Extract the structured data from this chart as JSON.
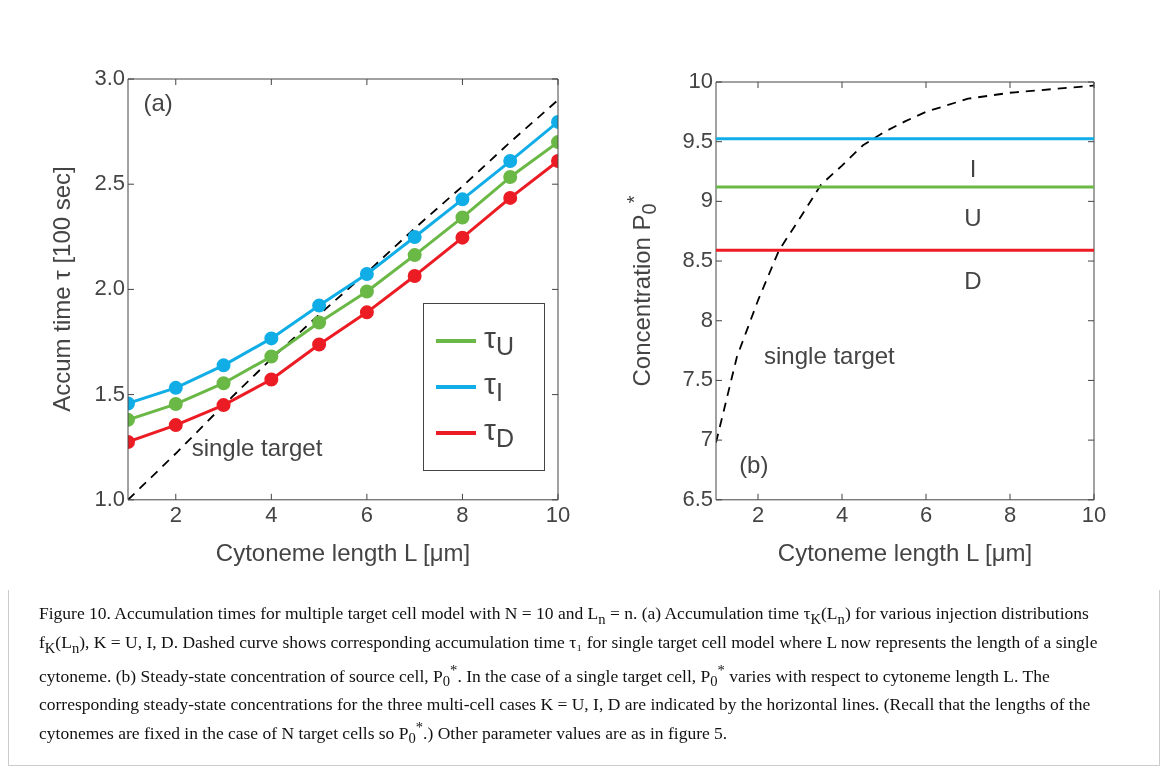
{
  "chart_data": [
    {
      "type": "line",
      "xlabel": "Cytoneme length L [μm]",
      "ylabel": "Accum time τ [100 sec]",
      "x": [
        1,
        2,
        3,
        4,
        5,
        6,
        7,
        8,
        9,
        10
      ],
      "series": [
        {
          "name": "τ$_{U}$",
          "color": "#6ab845",
          "marker": "circle",
          "values": [
            1.38,
            1.455,
            1.554,
            1.681,
            1.843,
            1.99,
            2.163,
            2.342,
            2.534,
            2.7
          ]
        },
        {
          "name": "τ$_{I}$",
          "color": "#10ade6",
          "marker": "circle",
          "values": [
            1.458,
            1.532,
            1.639,
            1.767,
            1.923,
            2.073,
            2.249,
            2.428,
            2.61,
            2.796
          ]
        },
        {
          "name": "τ$_{D}$",
          "color": "#ec1c24",
          "marker": "circle",
          "values": [
            1.275,
            1.355,
            1.45,
            1.572,
            1.738,
            1.891,
            2.064,
            2.246,
            2.435,
            2.61
          ]
        },
        {
          "color": "#000000",
          "marker": "none",
          "line_style": "dashed",
          "values": [
            1.0,
            1.22,
            1.45,
            1.67,
            1.88,
            2.08,
            2.29,
            2.49,
            2.7,
            2.9
          ]
        }
      ],
      "xlim": [
        1,
        10
      ],
      "xticks": [
        2,
        4,
        6,
        8,
        10
      ],
      "ylim": [
        1,
        3
      ],
      "yticks": [
        {
          "value": 1,
          "label": "1.0"
        },
        {
          "value": 1.5,
          "label": "1.5"
        },
        {
          "value": 2,
          "label": "2.0"
        },
        {
          "value": 2.5,
          "label": "2.5"
        },
        {
          "value": 3,
          "label": "3.0"
        }
      ],
      "grid": false,
      "legend": "bottom right",
      "annotations": [
        "(a)",
        "single target"
      ]
    },
    {
      "type": "line",
      "xlabel": "Cytoneme length L [μm]",
      "ylabel": "Concentration P$_{0}$$^{*}$",
      "x": [
        1,
        1.5,
        2,
        2.5,
        3,
        3.5,
        4,
        4.5,
        5,
        5.5,
        6,
        7,
        8,
        9,
        10
      ],
      "series": [
        {
          "color": "#000000",
          "marker": "none",
          "line_style": "dashed",
          "values": [
            6.98,
            7.7,
            8.17,
            8.59,
            8.86,
            9.14,
            9.3,
            9.47,
            9.58,
            9.67,
            9.75,
            9.86,
            9.91,
            9.94,
            9.97
          ]
        }
      ],
      "ref_lines": [
        {
          "axis": "y",
          "value": 9.525,
          "label": "I",
          "color": "#10ade6"
        },
        {
          "axis": "y",
          "value": 9.12,
          "label": "U",
          "color": "#6ab845"
        },
        {
          "axis": "y",
          "value": 8.59,
          "label": "D",
          "color": "#ec1c24"
        }
      ],
      "xlim": [
        1,
        10
      ],
      "xticks": [
        2,
        4,
        6,
        8,
        10
      ],
      "ylim": [
        6.5,
        10
      ],
      "yticks": [
        6.5,
        7,
        7.5,
        8,
        8.5,
        9,
        9.5,
        10
      ],
      "grid": false,
      "annotations": [
        "(b)",
        "single target"
      ]
    },
    {
      "type": "other",
      "annotations": [
        "Figure 10. Accumulation times for multiple target cell model with N = 10 and L$_{n}$ = n. (a) Accumulation time τ$_{K}$(L$_{n}$) for various injection distributions f$_{K}$(L$_{n}$), K = U, I, D. Dashed curve shows corresponding accumulation time τ₁ for single target cell model where L now represents the length of a single cytoneme. (b) Steady-state concentration of source cell, P$_{0}$$^{*}$. In the case of a single target cell, P$_{0}$$^{*}$ varies with respect to cytoneme length L. The corresponding steady-state concentrations for the three multi-cell cases K = U, I, D are indicated by the horizontal lines. (Recall that the lengths of the cytonemes are fixed in the case of N target cells so P$_{0}$$^{*}$.) Other parameter values are as in figure 5."
      ]
    }
  ]
}
